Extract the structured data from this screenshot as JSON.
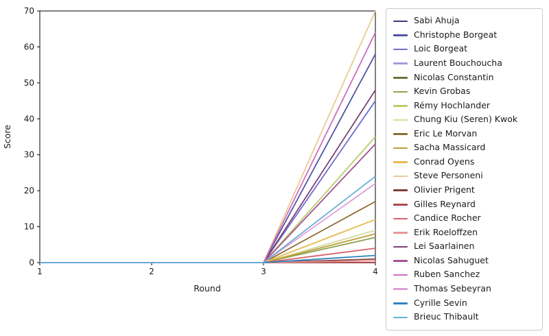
{
  "figure": {
    "background": "#ffffff",
    "axis_color": "#000000",
    "text_color": "#1a1a1a"
  },
  "chart_data": {
    "type": "line",
    "title": "",
    "xlabel": "Round",
    "ylabel": "Score",
    "x": [
      1,
      2,
      3,
      4
    ],
    "xticks": [
      1,
      2,
      3,
      4
    ],
    "yticks": [
      0,
      10,
      20,
      30,
      40,
      50,
      60,
      70
    ],
    "xlim": [
      1,
      4
    ],
    "ylim": [
      0,
      70
    ],
    "grid": false,
    "legend_position": "outside-right",
    "series": [
      {
        "name": "Sabi Ahuja",
        "color": "#393b79",
        "values": [
          0,
          0,
          0,
          0
        ]
      },
      {
        "name": "Christophe Borgeat",
        "color": "#5254a3",
        "values": [
          0,
          0,
          0,
          58
        ]
      },
      {
        "name": "Loic Borgeat",
        "color": "#6b6ecf",
        "values": [
          0,
          0,
          0,
          45
        ]
      },
      {
        "name": "Laurent Bouchoucha",
        "color": "#9c9ede",
        "values": [
          0,
          0,
          0,
          0
        ]
      },
      {
        "name": "Nicolas Constantin",
        "color": "#637939",
        "values": [
          0,
          0,
          0,
          0
        ]
      },
      {
        "name": "Kevin Grobas",
        "color": "#8ca252",
        "values": [
          0,
          0,
          0,
          7
        ]
      },
      {
        "name": "Rémy Hochlander",
        "color": "#b5cf6b",
        "values": [
          0,
          0,
          0,
          35
        ]
      },
      {
        "name": "Chung Kiu (Seren) Kwok",
        "color": "#cedb9c",
        "values": [
          0,
          0,
          0,
          9
        ]
      },
      {
        "name": "Eric Le Morvan",
        "color": "#8c6d31",
        "values": [
          0,
          0,
          0,
          17
        ]
      },
      {
        "name": "Sacha Massicard",
        "color": "#bd9e39",
        "values": [
          0,
          0,
          0,
          8
        ]
      },
      {
        "name": "Conrad Oyens",
        "color": "#e7ba52",
        "values": [
          0,
          0,
          0,
          12
        ]
      },
      {
        "name": "Steve Personeni",
        "color": "#e7cb94",
        "values": [
          0,
          0,
          0,
          70
        ]
      },
      {
        "name": "Olivier Prigent",
        "color": "#843c39",
        "values": [
          0,
          0,
          0,
          1
        ]
      },
      {
        "name": "Gilles Reynard",
        "color": "#ad494a",
        "values": [
          0,
          0,
          0,
          0
        ]
      },
      {
        "name": "Candice Rocher",
        "color": "#d6616b",
        "values": [
          0,
          0,
          0,
          4
        ]
      },
      {
        "name": "Erik Roeloffzen",
        "color": "#e7969c",
        "values": [
          0,
          0,
          0,
          0.5
        ]
      },
      {
        "name": "Lei Saarlainen",
        "color": "#7b4173",
        "values": [
          0,
          0,
          0,
          48
        ]
      },
      {
        "name": "Nicolas Sahuguet",
        "color": "#a55194",
        "values": [
          0,
          0,
          0,
          33
        ]
      },
      {
        "name": "Ruben Sanchez",
        "color": "#ce6dbd",
        "values": [
          0,
          0,
          0,
          64
        ]
      },
      {
        "name": "Thomas Sebeyran",
        "color": "#de9ed6",
        "values": [
          0,
          0,
          0,
          22
        ]
      },
      {
        "name": "Cyrille Sevin",
        "color": "#3182bd",
        "values": [
          0,
          0,
          0,
          2
        ]
      },
      {
        "name": "Brieuc Thibault",
        "color": "#6baed6",
        "values": [
          0,
          0,
          0,
          24
        ]
      }
    ]
  }
}
